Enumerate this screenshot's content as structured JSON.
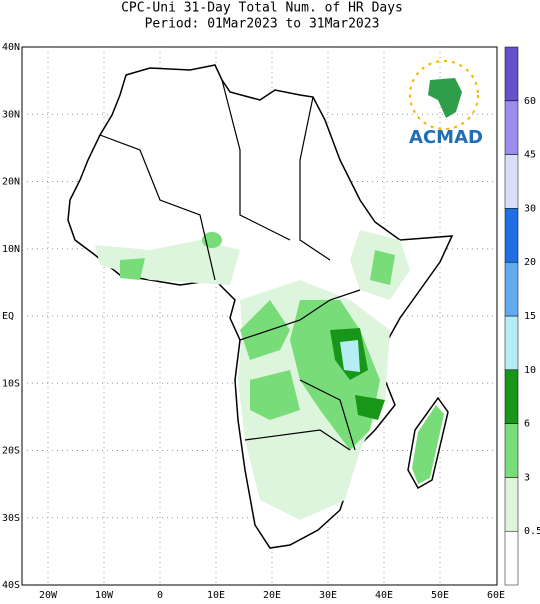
{
  "title": "CPC-Uni 31-Day Total Num. of HR Days",
  "subtitle": "Period: 01Mar2023 to 31Mar2023",
  "lat_labels": [
    "40N",
    "30N",
    "20N",
    "10N",
    "EQ",
    "10S",
    "20S",
    "30S",
    "40S"
  ],
  "lon_labels": [
    "20W",
    "10W",
    "0",
    "10E",
    "20E",
    "30E",
    "40E",
    "50E",
    "60E"
  ],
  "legend": {
    "levels": [
      0.5,
      3,
      6,
      10,
      15,
      20,
      30,
      45,
      60
    ],
    "colors": [
      "#ffffff",
      "#dcf5dc",
      "#78dc78",
      "#189618",
      "#b4eef4",
      "#64a8ee",
      "#1e6ee6",
      "#d8e0f6",
      "#9a8cf0",
      "#6650cc"
    ]
  },
  "logo": "ACMAD"
}
